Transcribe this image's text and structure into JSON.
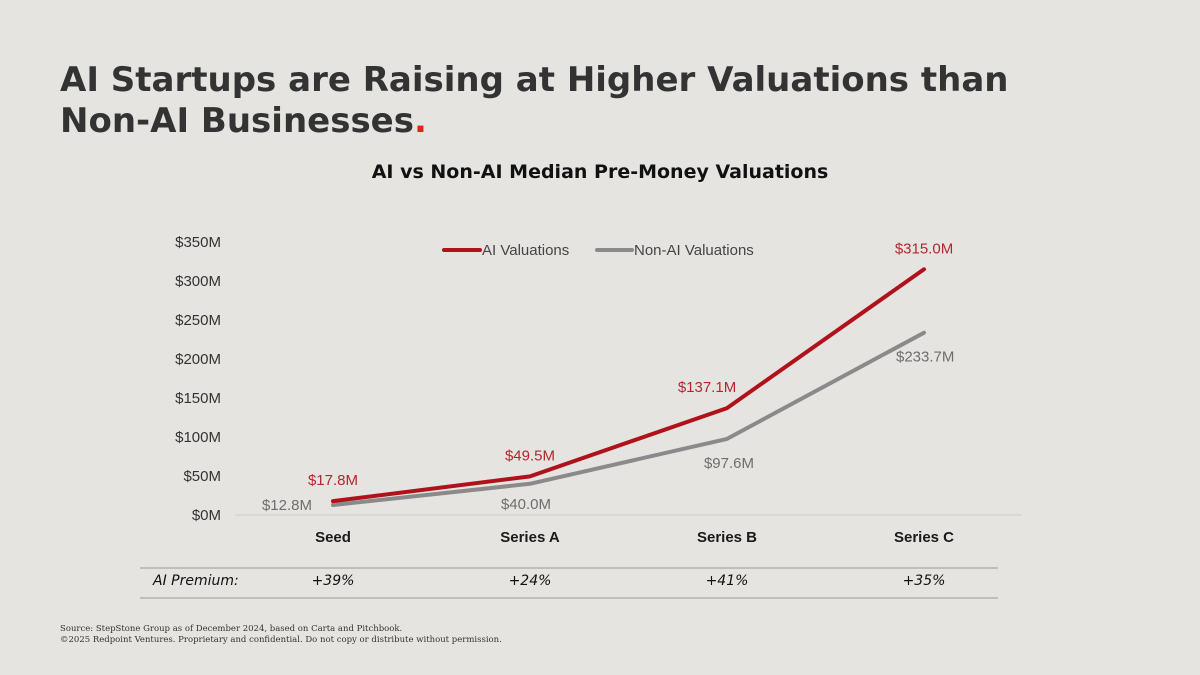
{
  "slide": {
    "title": "AI Startups are Raising at Higher Valuations than Non-AI Businesses",
    "title_dot": "."
  },
  "chart_data": {
    "type": "line",
    "title": "AI vs Non-AI Median Pre-Money Valuations",
    "categories": [
      "Seed",
      "Series A",
      "Series B",
      "Series C"
    ],
    "series": [
      {
        "name": "AI Valuations",
        "color": "#b0121b",
        "values": [
          17.8,
          49.5,
          137.1,
          315.0
        ],
        "labels": [
          "$17.8M",
          "$49.5M",
          "$137.1M",
          "$315.0M"
        ]
      },
      {
        "name": "Non-AI Valuations",
        "color": "#8a8a8a",
        "values": [
          12.8,
          40.0,
          97.6,
          233.7
        ],
        "labels": [
          "$12.8M",
          "$40.0M",
          "$97.6M",
          "$233.7M"
        ]
      }
    ],
    "ylim": [
      0,
      350
    ],
    "yticks": [
      0,
      50,
      100,
      150,
      200,
      250,
      300,
      350
    ],
    "ytick_labels": [
      "$0M",
      "$50M",
      "$100M",
      "$150M",
      "$200M",
      "$250M",
      "$300M",
      "$350M"
    ],
    "legend": "top-center",
    "grid": false,
    "xlabel": "",
    "ylabel": ""
  },
  "premium": {
    "label": "AI Premium:",
    "values": [
      "+39%",
      "+24%",
      "+41%",
      "+35%"
    ]
  },
  "footer": {
    "source": "Source: StepStone Group as of December 2024, based on Carta and Pitchbook.",
    "copyright": "©2025 Redpoint Ventures. Proprietary and confidential. Do not copy or distribute without permission."
  }
}
